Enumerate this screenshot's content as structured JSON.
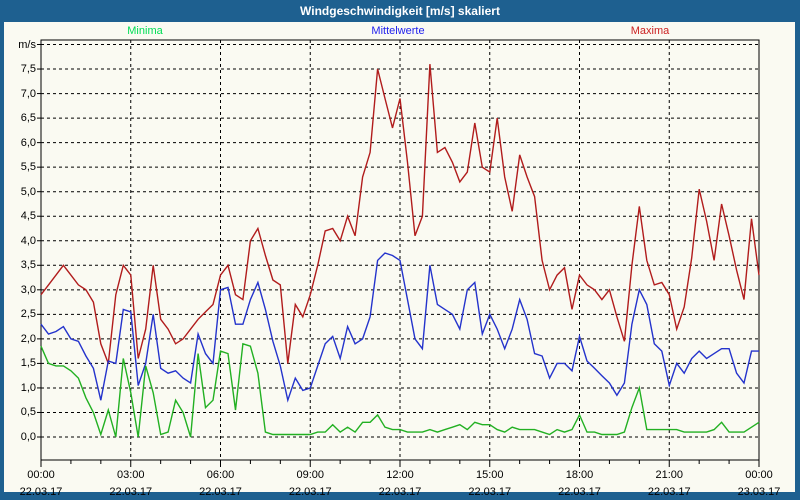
{
  "window": {
    "title": "Windgeschwindigkeit [m/s] skaliert",
    "frame_color": "#1e6090",
    "content_background": "#fafaf2"
  },
  "legend": [
    {
      "label": "Minima",
      "color": "#00dd55"
    },
    {
      "label": "Mittelwerte",
      "color": "#2222ee"
    },
    {
      "label": "Maxima",
      "color": "#cc2222"
    }
  ],
  "y_axis": {
    "unit_label": "m/s",
    "labels": [
      "0,0",
      "0,5",
      "1,0",
      "1,5",
      "2,0",
      "2,5",
      "3,0",
      "3,5",
      "4,0",
      "4,5",
      "5,0",
      "5,5",
      "6,0",
      "6,5",
      "7,0",
      "7,5"
    ],
    "min": 0,
    "max": 8,
    "step": 0.5
  },
  "x_axis": {
    "ticks": [
      {
        "hour": 0,
        "time": "00:00",
        "date": "22.03.17"
      },
      {
        "hour": 3,
        "time": "03:00",
        "date": "22.03.17"
      },
      {
        "hour": 6,
        "time": "06:00",
        "date": "22.03.17"
      },
      {
        "hour": 9,
        "time": "09:00",
        "date": "22.03.17"
      },
      {
        "hour": 12,
        "time": "12:00",
        "date": "22.03.17"
      },
      {
        "hour": 15,
        "time": "15:00",
        "date": "22.03.17"
      },
      {
        "hour": 18,
        "time": "18:00",
        "date": "22.03.17"
      },
      {
        "hour": 21,
        "time": "21:00",
        "date": "22.03.17"
      },
      {
        "hour": 24,
        "time": "00:00",
        "date": "23.03.17"
      }
    ]
  },
  "chart_data": {
    "type": "line",
    "title": "Windgeschwindigkeit [m/s] skaliert",
    "ylabel": "m/s",
    "ylim": [
      0,
      8
    ],
    "grid": true,
    "legend_position": "top",
    "x_start_hour": 0,
    "x_step_hours": 0.25,
    "x_range_hours": [
      0,
      24
    ],
    "series": [
      {
        "name": "Maxima",
        "color": "#b11c1c",
        "values": [
          2.9,
          3.1,
          3.3,
          3.5,
          3.3,
          3.1,
          3.0,
          2.75,
          1.9,
          1.5,
          2.9,
          3.5,
          3.3,
          1.6,
          2.2,
          3.5,
          2.4,
          2.2,
          1.9,
          2.0,
          2.2,
          2.4,
          2.55,
          2.7,
          3.3,
          3.5,
          2.9,
          2.8,
          4.0,
          4.25,
          3.7,
          3.2,
          3.1,
          1.5,
          2.7,
          2.45,
          2.9,
          3.5,
          4.2,
          4.25,
          4.0,
          4.5,
          4.1,
          5.3,
          5.8,
          7.5,
          6.9,
          6.3,
          6.9,
          5.6,
          4.1,
          4.5,
          7.6,
          5.8,
          5.9,
          5.6,
          5.2,
          5.4,
          6.4,
          5.5,
          5.4,
          6.5,
          5.3,
          4.6,
          5.75,
          5.3,
          4.9,
          3.6,
          3.0,
          3.3,
          3.45,
          2.6,
          3.3,
          3.1,
          3.0,
          2.8,
          3.0,
          2.45,
          1.95,
          3.5,
          4.7,
          3.6,
          3.1,
          3.15,
          2.9,
          2.2,
          2.65,
          3.65,
          5.05,
          4.4,
          3.6,
          4.75,
          4.1,
          3.4,
          2.8,
          4.45,
          3.3
        ]
      },
      {
        "name": "Mittelwerte",
        "color": "#2433cc",
        "values": [
          2.3,
          2.1,
          2.15,
          2.25,
          2.0,
          1.95,
          1.65,
          1.4,
          0.75,
          1.55,
          1.5,
          2.6,
          2.55,
          1.05,
          1.5,
          2.5,
          1.4,
          1.3,
          1.35,
          1.2,
          1.1,
          2.1,
          1.7,
          1.5,
          3.0,
          3.05,
          2.3,
          2.3,
          2.8,
          3.15,
          2.6,
          1.95,
          1.45,
          0.75,
          1.2,
          0.95,
          1.0,
          1.45,
          1.9,
          2.05,
          1.6,
          2.25,
          1.9,
          2.0,
          2.45,
          3.6,
          3.75,
          3.7,
          3.6,
          2.8,
          2.0,
          1.8,
          3.5,
          2.7,
          2.6,
          2.5,
          2.2,
          3.0,
          3.15,
          2.1,
          2.5,
          2.2,
          1.8,
          2.2,
          2.8,
          2.4,
          1.7,
          1.65,
          1.2,
          1.5,
          1.5,
          1.35,
          2.05,
          1.55,
          1.4,
          1.25,
          1.1,
          0.85,
          1.1,
          2.3,
          3.0,
          2.7,
          1.9,
          1.75,
          1.05,
          1.5,
          1.3,
          1.6,
          1.75,
          1.6,
          1.7,
          1.8,
          1.8,
          1.3,
          1.1,
          1.75,
          1.75
        ]
      },
      {
        "name": "Minima",
        "color": "#22b022",
        "values": [
          1.85,
          1.5,
          1.45,
          1.45,
          1.35,
          1.2,
          0.8,
          0.5,
          0.05,
          0.55,
          0.0,
          1.6,
          0.9,
          0.0,
          1.45,
          0.9,
          0.05,
          0.1,
          0.75,
          0.5,
          0.0,
          1.7,
          0.6,
          0.75,
          1.75,
          1.7,
          0.55,
          1.9,
          1.85,
          1.3,
          0.1,
          0.05,
          0.05,
          0.05,
          0.05,
          0.05,
          0.05,
          0.1,
          0.1,
          0.25,
          0.1,
          0.2,
          0.1,
          0.3,
          0.3,
          0.45,
          0.2,
          0.15,
          0.15,
          0.1,
          0.1,
          0.1,
          0.15,
          0.1,
          0.15,
          0.2,
          0.25,
          0.15,
          0.3,
          0.25,
          0.25,
          0.15,
          0.1,
          0.2,
          0.15,
          0.15,
          0.15,
          0.1,
          0.05,
          0.15,
          0.1,
          0.15,
          0.45,
          0.1,
          0.1,
          0.05,
          0.05,
          0.05,
          0.1,
          0.6,
          1.0,
          0.15,
          0.15,
          0.15,
          0.15,
          0.15,
          0.1,
          0.1,
          0.1,
          0.1,
          0.15,
          0.3,
          0.1,
          0.1,
          0.1,
          0.2,
          0.3
        ]
      }
    ]
  }
}
